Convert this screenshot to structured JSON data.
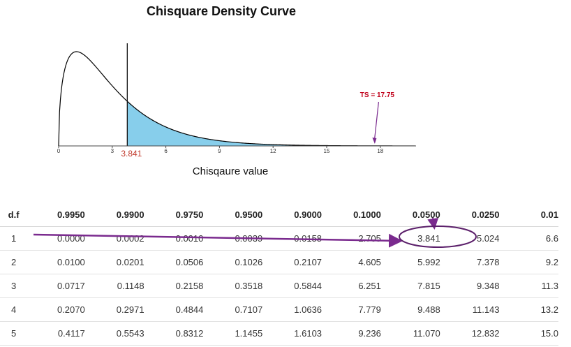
{
  "chart_data": {
    "type": "area",
    "title": "Chisquare Density Curve",
    "xlabel": "Chisqaure value",
    "ylabel": "",
    "df": 3,
    "xlim": [
      0,
      20
    ],
    "ticks": [
      0,
      3,
      6,
      9,
      12,
      15,
      18
    ],
    "shade_from": 3.841,
    "critical_value_label": "3.841",
    "test_statistic": 17.75,
    "test_statistic_label": "TS = 17.75",
    "colors": {
      "curve": "#000000",
      "fill": "#87ceeb",
      "critical_label": "#c0392b",
      "ts_label": "#c0001a",
      "arrow": "#7a2a8e"
    }
  },
  "table": {
    "headers": [
      "d.f",
      "0.9950",
      "0.9900",
      "0.9750",
      "0.9500",
      "0.9000",
      "0.1000",
      "0.0500",
      "0.0250",
      "0.01"
    ],
    "rows": [
      [
        "1",
        "0.0000",
        "0.0002",
        "0.0010",
        "0.0039",
        "0.0158",
        "2.705",
        "3.841",
        "5.024",
        "6.6"
      ],
      [
        "2",
        "0.0100",
        "0.0201",
        "0.0506",
        "0.1026",
        "0.2107",
        "4.605",
        "5.992",
        "7.378",
        "9.2"
      ],
      [
        "3",
        "0.0717",
        "0.1148",
        "0.2158",
        "0.3518",
        "0.5844",
        "6.251",
        "7.815",
        "9.348",
        "11.3"
      ],
      [
        "4",
        "0.2070",
        "0.2971",
        "0.4844",
        "0.7107",
        "1.0636",
        "7.779",
        "9.488",
        "11.143",
        "13.2"
      ],
      [
        "5",
        "0.4117",
        "0.5543",
        "0.8312",
        "1.1455",
        "1.6103",
        "9.236",
        "11.070",
        "12.832",
        "15.0"
      ]
    ],
    "highlight": {
      "row": 1,
      "column": "0.0500",
      "value": "3.841"
    }
  }
}
